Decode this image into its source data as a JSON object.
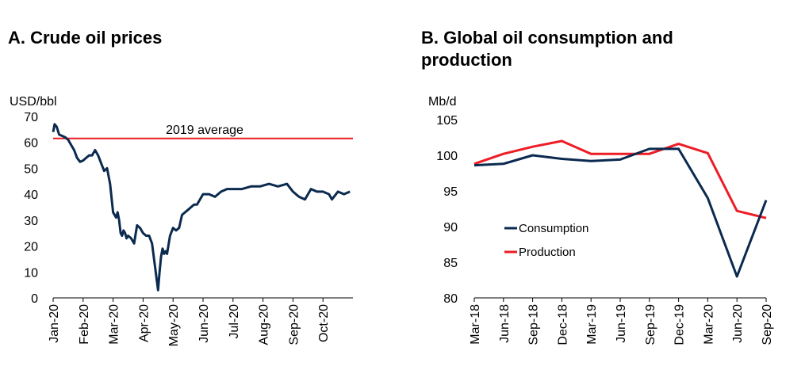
{
  "panel_a": {
    "title": "A. Crude oil prices"
  },
  "panel_b": {
    "title": "B. Global oil consumption and production"
  },
  "colors": {
    "navy": "#0b2a4f",
    "red": "#ee1c25"
  },
  "chart_data": [
    {
      "type": "line",
      "title": "A. Crude oil prices",
      "ylabel": "USD/bbl",
      "ylim": [
        0,
        70
      ],
      "yticks": [
        "0",
        "10",
        "20",
        "30",
        "40",
        "50",
        "60",
        "70"
      ],
      "xlim": [
        0,
        10
      ],
      "xticks": [
        "Jan-20",
        "Feb-20",
        "Mar-20",
        "Apr-20",
        "May-20",
        "Jun-20",
        "Jul-20",
        "Aug-20",
        "Sep-20",
        "Oct-20"
      ],
      "reference_line": {
        "label": "2019 average",
        "value": 61.5
      },
      "series": [
        {
          "color": "#0b2a4f",
          "x": [
            0,
            0.05,
            0.12,
            0.2,
            0.3,
            0.4,
            0.5,
            0.6,
            0.7,
            0.8,
            0.9,
            1.0,
            1.1,
            1.2,
            1.3,
            1.4,
            1.5,
            1.6,
            1.7,
            1.8,
            1.9,
            2.0,
            2.1,
            2.15,
            2.2,
            2.25,
            2.3,
            2.35,
            2.4,
            2.45,
            2.5,
            2.6,
            2.7,
            2.8,
            2.9,
            3.0,
            3.1,
            3.2,
            3.3,
            3.4,
            3.5,
            3.55,
            3.6,
            3.65,
            3.7,
            3.75,
            3.8,
            3.9,
            4.0,
            4.1,
            4.2,
            4.3,
            4.4,
            4.5,
            4.6,
            4.7,
            4.8,
            4.9,
            5.0,
            5.2,
            5.4,
            5.6,
            5.8,
            6.0,
            6.3,
            6.6,
            6.9,
            7.2,
            7.5,
            7.8,
            8.0,
            8.2,
            8.4,
            8.6,
            8.8,
            9.0,
            9.2,
            9.3,
            9.5,
            9.7,
            9.9
          ],
          "y": [
            64,
            67,
            66,
            63,
            62.5,
            62,
            61,
            59,
            57,
            54,
            52.5,
            53,
            54,
            55,
            55,
            57,
            55,
            52,
            49,
            50,
            44,
            33,
            31,
            33,
            30,
            25,
            24,
            26,
            25,
            23,
            24,
            23,
            21,
            28,
            27,
            25,
            24,
            24,
            21,
            12,
            3,
            10,
            16,
            19,
            17,
            18,
            17,
            24,
            27,
            26,
            27,
            32,
            33,
            34,
            35,
            36,
            36,
            38,
            40,
            40,
            39,
            41,
            42,
            42,
            42,
            43,
            43,
            44,
            43,
            44,
            41,
            39,
            38,
            42,
            41,
            41,
            40,
            38,
            41,
            40,
            41
          ]
        }
      ]
    },
    {
      "type": "line",
      "title": "B. Global oil consumption and production",
      "ylabel": "Mb/d",
      "ylim": [
        80,
        105
      ],
      "yticks": [
        "80",
        "85",
        "90",
        "95",
        "100",
        "105"
      ],
      "categories": [
        "Mar-18",
        "Jun-18",
        "Sep-18",
        "Dec-18",
        "Mar-19",
        "Jun-19",
        "Sep-19",
        "Dec-19",
        "Mar-20",
        "Jun-20",
        "Sep-20"
      ],
      "legend": "center-left",
      "series": [
        {
          "name": "Consumption",
          "color": "#0b2a4f",
          "values": [
            98.6,
            98.8,
            100.0,
            99.5,
            99.2,
            99.4,
            100.9,
            100.9,
            94.0,
            83.0,
            93.7
          ]
        },
        {
          "name": "Production",
          "color": "#ee1c25",
          "values": [
            98.8,
            100.2,
            101.2,
            102.0,
            100.2,
            100.2,
            100.2,
            101.6,
            100.3,
            92.2,
            91.2
          ]
        }
      ]
    }
  ]
}
